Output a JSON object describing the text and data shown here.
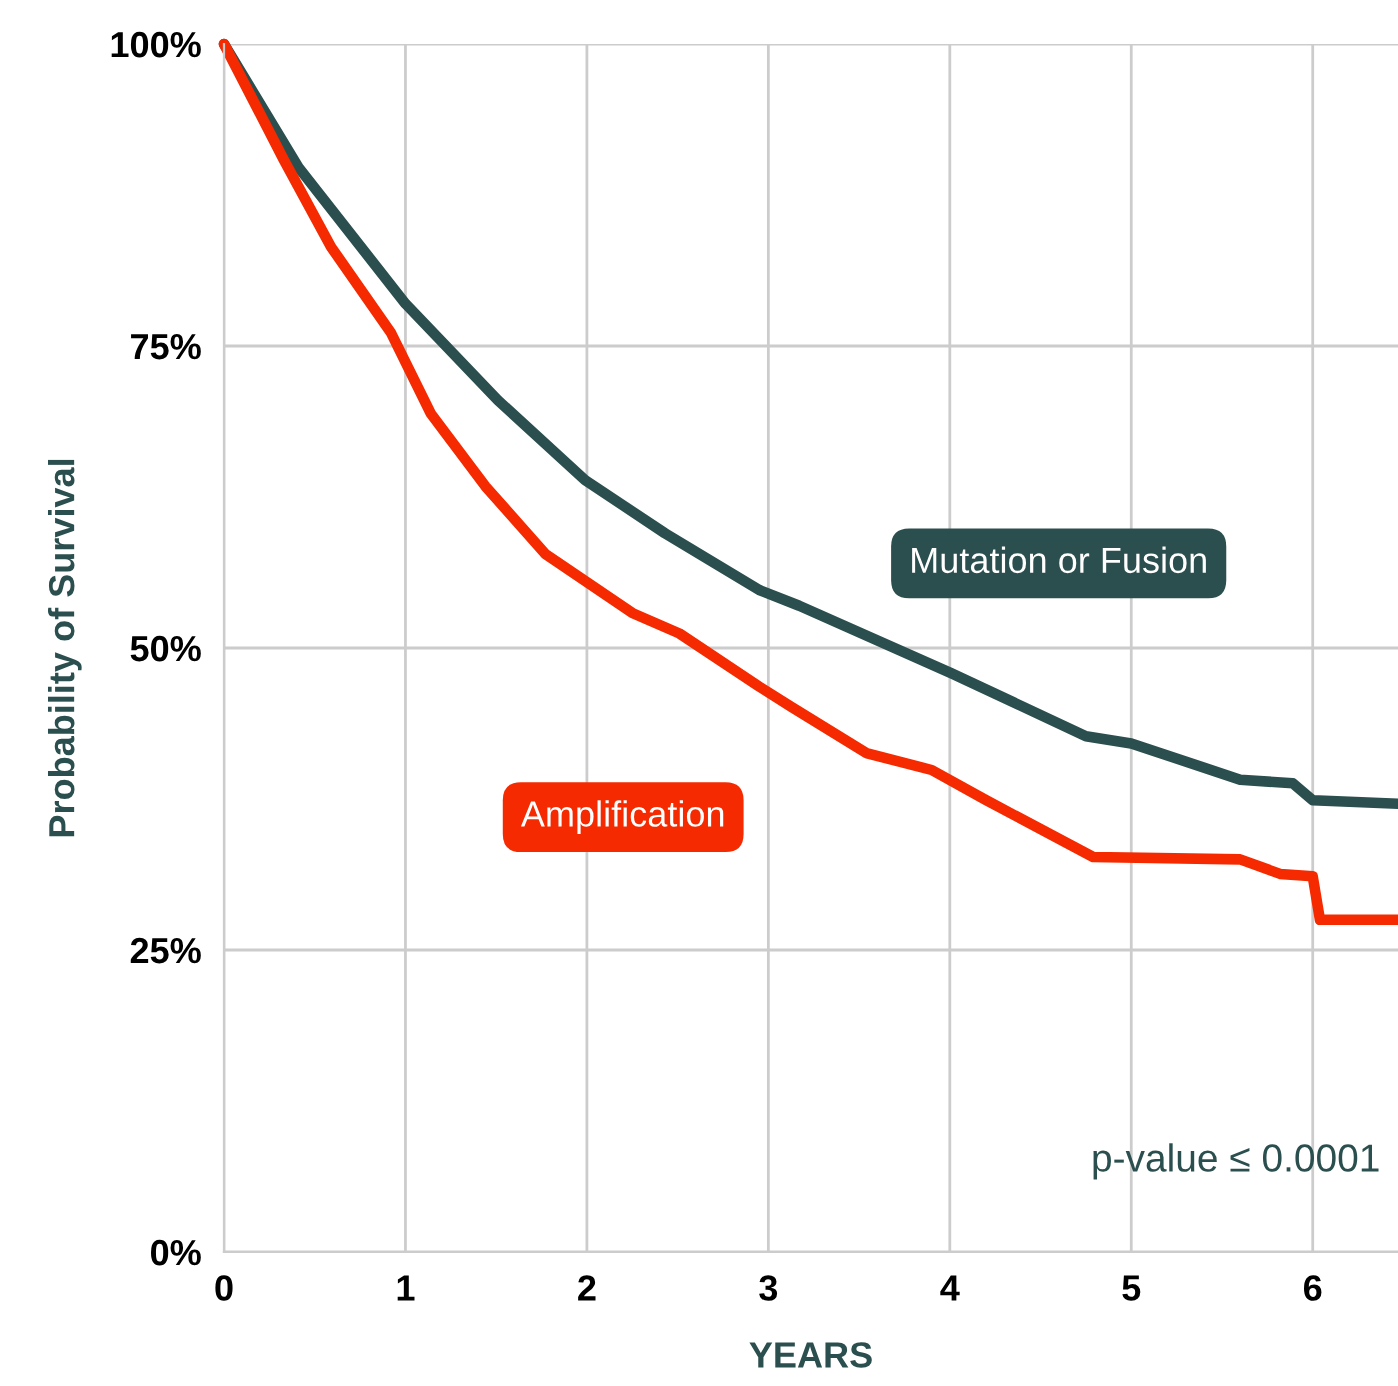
{
  "chart_data": {
    "type": "line",
    "xlabel": "YEARS",
    "ylabel": "Probability of Survival",
    "series": [
      {
        "name": "Mutation or Fusion",
        "color": "#2b4f4e",
        "x": [
          0,
          0.41,
          1.0,
          1.51,
          1.99,
          2.43,
          2.95,
          3.17,
          4.01,
          4.75,
          5.0,
          5.6,
          5.89,
          6.0,
          6.47
        ],
        "values": [
          100,
          89.8,
          78.5,
          70.5,
          63.9,
          59.5,
          54.8,
          53.5,
          47.9,
          42.7,
          42.1,
          39.1,
          38.8,
          37.4,
          37.1
        ]
      },
      {
        "name": "Amplification",
        "color": "#f52a00",
        "x": [
          0,
          0.33,
          0.59,
          0.92,
          1.14,
          1.44,
          1.77,
          2.25,
          2.51,
          2.95,
          3.13,
          3.54,
          3.9,
          4.2,
          4.79,
          5.6,
          5.82,
          6.0,
          6.04,
          6.47
        ],
        "values": [
          100,
          90.4,
          83.2,
          76.1,
          69.4,
          63.4,
          57.8,
          52.9,
          51.2,
          46.8,
          45.1,
          41.3,
          39.9,
          37.4,
          32.7,
          32.5,
          31.3,
          31.1,
          27.5,
          27.5
        ]
      }
    ],
    "xlim": [
      0,
      6.47
    ],
    "xticks": [
      0,
      1,
      2,
      3,
      4,
      5,
      6
    ],
    "ylim": [
      0,
      100
    ],
    "yticks": [
      {
        "value": 0,
        "label": "0%"
      },
      {
        "value": 25,
        "label": "25%"
      },
      {
        "value": 50,
        "label": "50%"
      },
      {
        "value": 75,
        "label": "75%"
      },
      {
        "value": 100,
        "label": "100%"
      }
    ],
    "grid": true,
    "line_style": "solid",
    "marker": "none",
    "annotations": [
      "p-value ≤ 0.0001"
    ]
  }
}
